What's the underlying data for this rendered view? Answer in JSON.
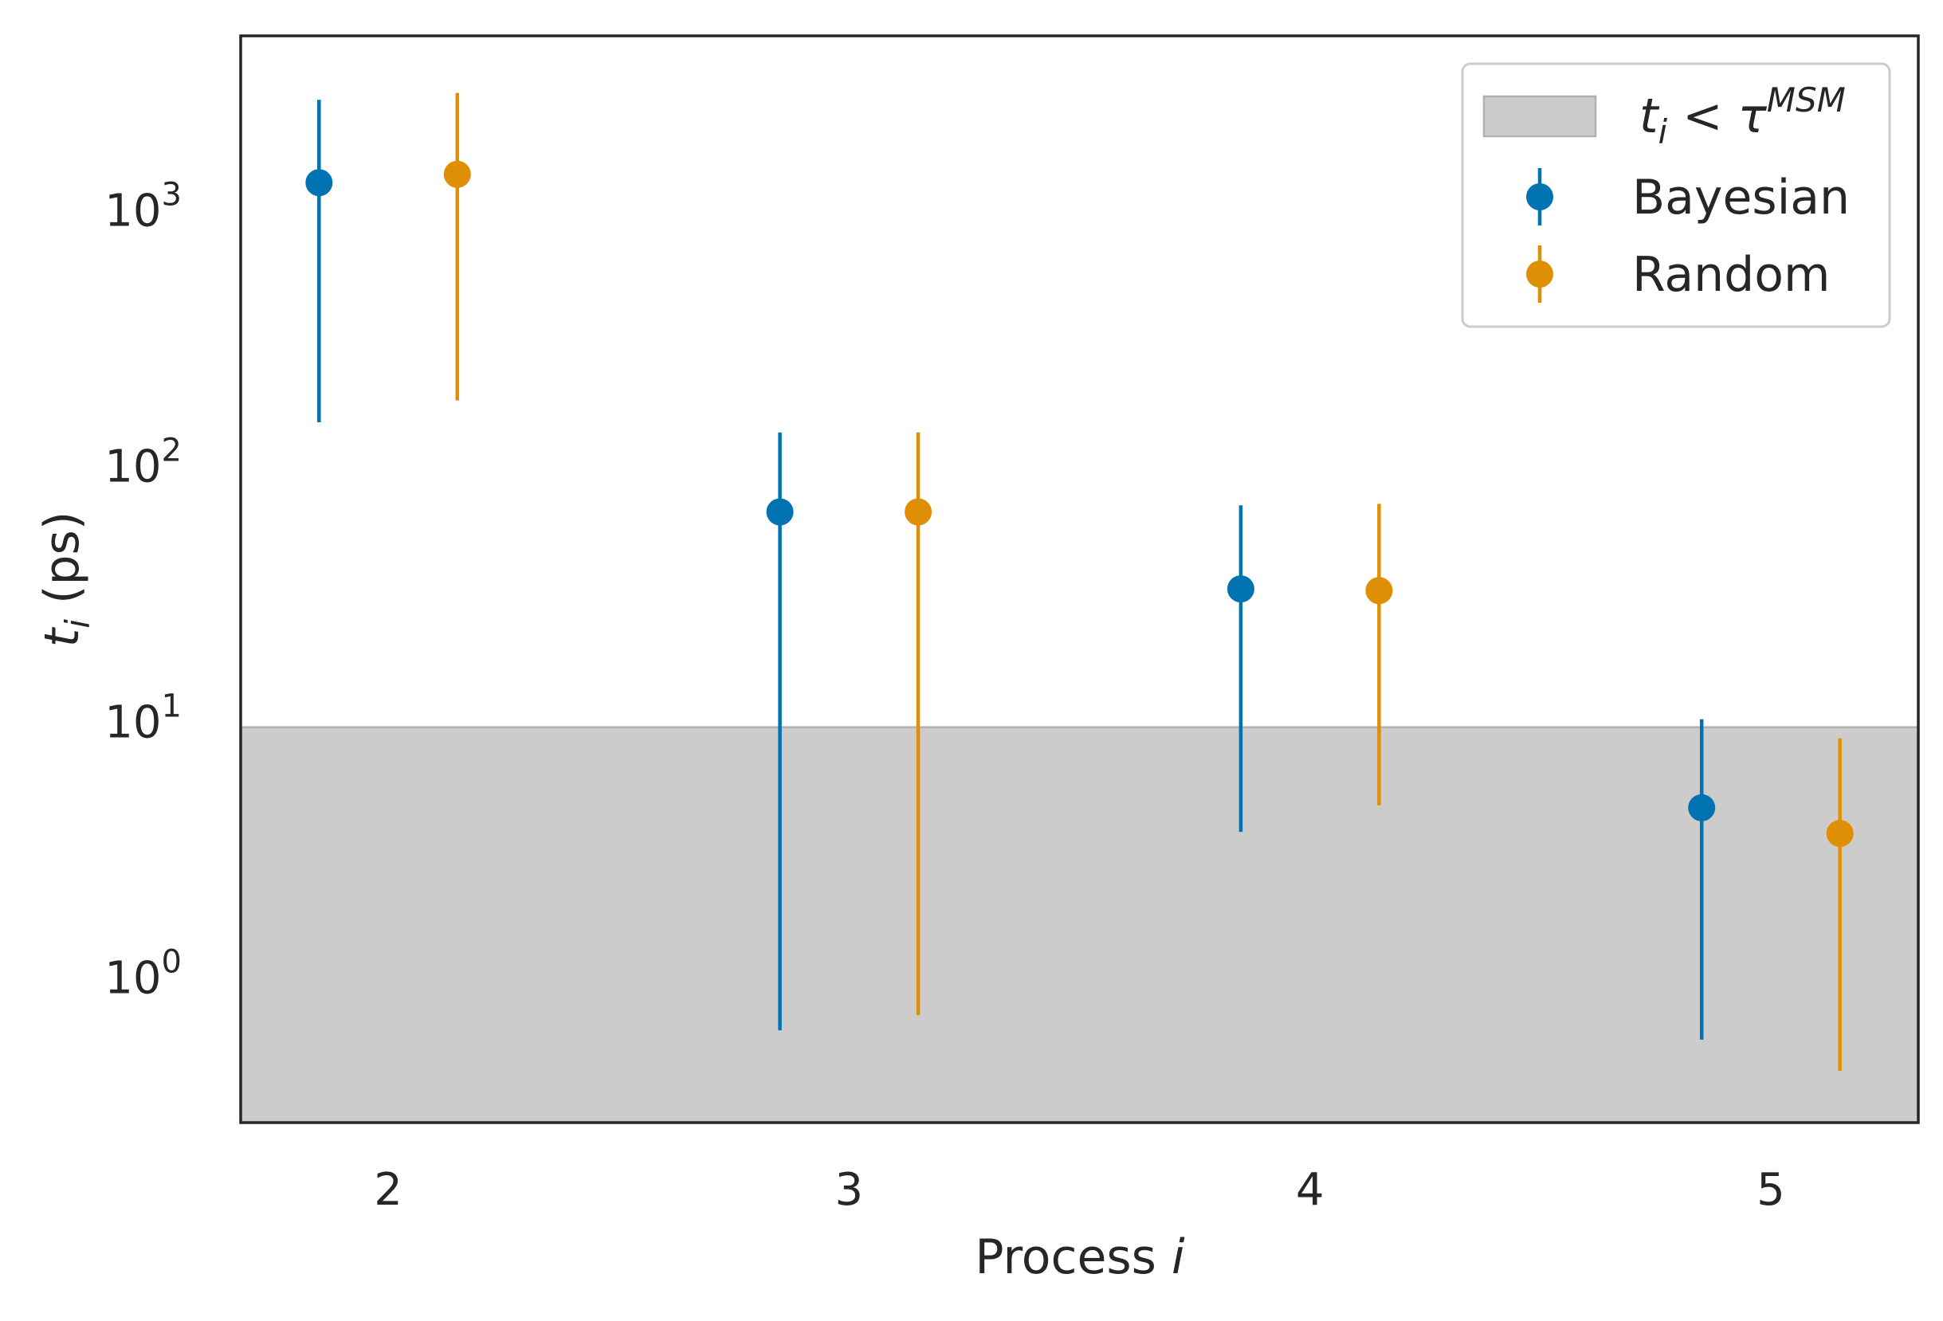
{
  "chart_data": {
    "type": "scatter",
    "xlabel": "Process",
    "xlabel_italic": "i",
    "ylabel": "t",
    "ylabel_sub": "i",
    "ylabel_unit": "(ps)",
    "yscale": "log",
    "ylim": [
      0.27,
      4800
    ],
    "xlim": [
      1.68,
      5.32
    ],
    "categories": [
      2,
      3,
      4,
      5
    ],
    "x_ticks": [
      "2",
      "3",
      "4",
      "5"
    ],
    "y_ticks": [
      {
        "base": "10",
        "exp": "0",
        "value": 1
      },
      {
        "base": "10",
        "exp": "1",
        "value": 10
      },
      {
        "base": "10",
        "exp": "2",
        "value": 100
      },
      {
        "base": "10",
        "exp": "3",
        "value": 1000
      }
    ],
    "grid": false,
    "legend_position": "top-right",
    "shaded_region": {
      "label_t": "t",
      "label_sub": "i",
      "label_op": "<",
      "label_tau": "τ",
      "label_sup": "MSM",
      "y_max": 9.5,
      "color": "#cccccc"
    },
    "series": [
      {
        "name": "Bayesian",
        "color": "#0173b2",
        "offset": -0.15,
        "points": [
          {
            "x": 2,
            "y": 1280,
            "ylow": 148,
            "yhigh": 2700
          },
          {
            "x": 3,
            "y": 66,
            "ylow": 0.62,
            "yhigh": 135
          },
          {
            "x": 4,
            "y": 33,
            "ylow": 3.7,
            "yhigh": 70
          },
          {
            "x": 5,
            "y": 4.6,
            "ylow": 0.57,
            "yhigh": 10.2
          }
        ]
      },
      {
        "name": "Random",
        "color": "#de8f05",
        "offset": 0.15,
        "points": [
          {
            "x": 2,
            "y": 1380,
            "ylow": 180,
            "yhigh": 2870
          },
          {
            "x": 3,
            "y": 66,
            "ylow": 0.71,
            "yhigh": 135
          },
          {
            "x": 4,
            "y": 32.5,
            "ylow": 4.7,
            "yhigh": 71
          },
          {
            "x": 5,
            "y": 3.65,
            "ylow": 0.43,
            "yhigh": 8.6
          }
        ]
      }
    ]
  }
}
